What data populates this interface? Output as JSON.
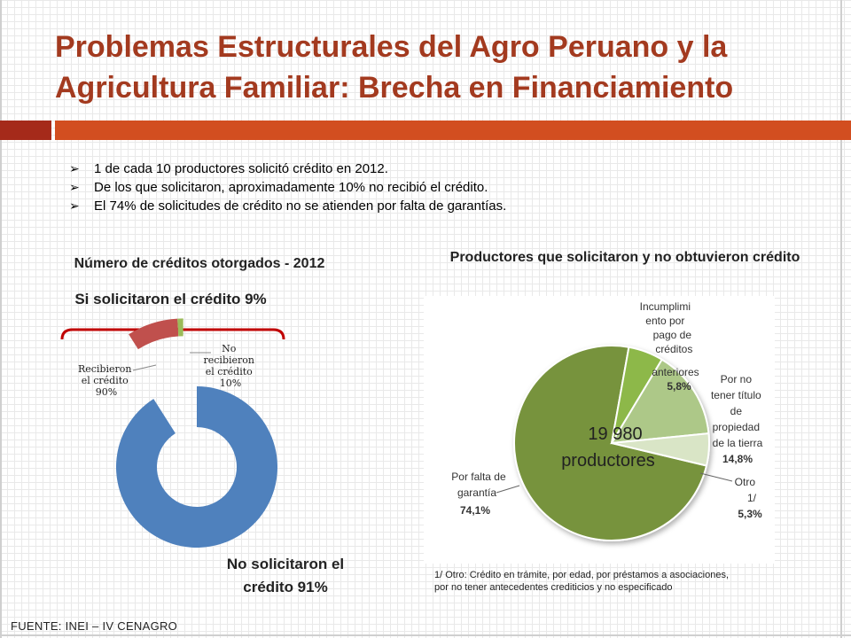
{
  "slide": {
    "title_line1": "Problemas Estructurales del Agro Peruano y la",
    "title_line2": "Agricultura Familiar: Brecha en Financiamiento",
    "bullets": [
      "1 de cada 10 productores solicitó crédito en 2012.",
      "De los que solicitaron, aproximadamente 10% no recibió el crédito.",
      "El 74% de solicitudes de crédito no se atienden por falta de garantías."
    ],
    "source": "FUENTE: INEI – IV CENAGRO",
    "footnote_line1": "1/ Otro: Crédito en trámite, por edad, por préstamos a asociaciones,",
    "footnote_line2": "por no tener antecedentes crediticios y no especificado",
    "colors": {
      "title": "#a33a1f",
      "bar_dark": "#a52a1a",
      "bar_orange": "#d24e20"
    }
  },
  "chart_data": [
    {
      "type": "pie",
      "title": "Número de créditos otorgados - 2012",
      "donut": {
        "label_line1": "No solicitaron el",
        "label_line2": "crédito 91%",
        "value": 91,
        "color": "#4f81bd"
      },
      "group_label": "Si solicitaron el crédito 9%",
      "group_value": 9,
      "slices": [
        {
          "label_lines": [
            "Recibieron",
            "el crédito",
            "90%"
          ],
          "value": 90,
          "color": "#c0504d"
        },
        {
          "label_lines": [
            "No",
            "recibieron",
            "el crédito",
            "10%"
          ],
          "value": 10,
          "color": "#9bbb59"
        }
      ]
    },
    {
      "type": "pie",
      "title": "Productores que solicitaron y no obtuvieron crédito",
      "center_label_line1": "19 980",
      "center_label_line2": "productores",
      "slices": [
        {
          "label_lines": [
            "Por falta de",
            "garantía"
          ],
          "value_label": "74,1%",
          "value": 74.1,
          "color": "#77933c"
        },
        {
          "label_lines": [
            "Incumplimi",
            "ento por",
            "pago de",
            "créditos",
            "anteriores"
          ],
          "value_label": "5,8%",
          "value": 5.8,
          "color": "#8db84a"
        },
        {
          "label_lines": [
            "Por no",
            "tener título",
            "de",
            "propiedad",
            "de la tierra"
          ],
          "value_label": "14,8%",
          "value": 14.8,
          "color": "#adc888"
        },
        {
          "label_lines": [
            "Otro",
            "1/"
          ],
          "value_label": "5,3%",
          "value": 5.3,
          "color": "#d9e5c6"
        }
      ]
    }
  ]
}
